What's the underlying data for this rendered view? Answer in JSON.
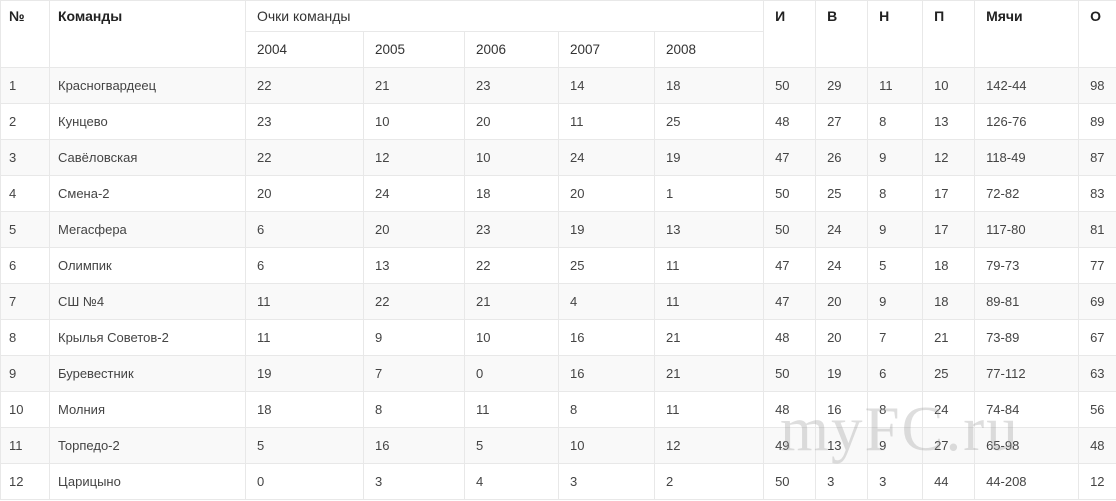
{
  "table": {
    "header": {
      "num": "№",
      "team": "Команды",
      "points_group": "Очки команды",
      "years": [
        "2004",
        "2005",
        "2006",
        "2007",
        "2008"
      ],
      "games": "И",
      "wins": "В",
      "draws": "Н",
      "losses": "П",
      "goals": "Мячи",
      "points": "О"
    },
    "rows": [
      {
        "num": "1",
        "team": "Красногвардеец",
        "years": [
          "22",
          "21",
          "23",
          "14",
          "18"
        ],
        "games": "50",
        "wins": "29",
        "draws": "11",
        "losses": "10",
        "goals": "142-44",
        "points": "98"
      },
      {
        "num": "2",
        "team": "Кунцево",
        "years": [
          "23",
          "10",
          "20",
          "11",
          "25"
        ],
        "games": "48",
        "wins": "27",
        "draws": "8",
        "losses": "13",
        "goals": "126-76",
        "points": "89"
      },
      {
        "num": "3",
        "team": "Савёловская",
        "years": [
          "22",
          "12",
          "10",
          "24",
          "19"
        ],
        "games": "47",
        "wins": "26",
        "draws": "9",
        "losses": "12",
        "goals": "118-49",
        "points": "87"
      },
      {
        "num": "4",
        "team": "Смена-2",
        "years": [
          "20",
          "24",
          "18",
          "20",
          "1"
        ],
        "games": "50",
        "wins": "25",
        "draws": "8",
        "losses": "17",
        "goals": "72-82",
        "points": "83"
      },
      {
        "num": "5",
        "team": "Мегасфера",
        "years": [
          "6",
          "20",
          "23",
          "19",
          "13"
        ],
        "games": "50",
        "wins": "24",
        "draws": "9",
        "losses": "17",
        "goals": "117-80",
        "points": "81"
      },
      {
        "num": "6",
        "team": "Олимпик",
        "years": [
          "6",
          "13",
          "22",
          "25",
          "11"
        ],
        "games": "47",
        "wins": "24",
        "draws": "5",
        "losses": "18",
        "goals": "79-73",
        "points": "77"
      },
      {
        "num": "7",
        "team": "СШ №4",
        "years": [
          "11",
          "22",
          "21",
          "4",
          "11"
        ],
        "games": "47",
        "wins": "20",
        "draws": "9",
        "losses": "18",
        "goals": "89-81",
        "points": "69"
      },
      {
        "num": "8",
        "team": "Крылья Советов-2",
        "years": [
          "11",
          "9",
          "10",
          "16",
          "21"
        ],
        "games": "48",
        "wins": "20",
        "draws": "7",
        "losses": "21",
        "goals": "73-89",
        "points": "67"
      },
      {
        "num": "9",
        "team": "Буревестник",
        "years": [
          "19",
          "7",
          "0",
          "16",
          "21"
        ],
        "games": "50",
        "wins": "19",
        "draws": "6",
        "losses": "25",
        "goals": "77-112",
        "points": "63"
      },
      {
        "num": "10",
        "team": "Молния",
        "years": [
          "18",
          "8",
          "11",
          "8",
          "11"
        ],
        "games": "48",
        "wins": "16",
        "draws": "8",
        "losses": "24",
        "goals": "74-84",
        "points": "56"
      },
      {
        "num": "11",
        "team": "Торпедо-2",
        "years": [
          "5",
          "16",
          "5",
          "10",
          "12"
        ],
        "games": "49",
        "wins": "13",
        "draws": "9",
        "losses": "27",
        "goals": "65-98",
        "points": "48"
      },
      {
        "num": "12",
        "team": "Царицыно",
        "years": [
          "0",
          "3",
          "4",
          "3",
          "2"
        ],
        "games": "50",
        "wins": "3",
        "draws": "3",
        "losses": "44",
        "goals": "44-208",
        "points": "12"
      }
    ]
  },
  "watermark": {
    "text": "myFC.ru"
  },
  "colors": {
    "border": "#e8e8e8",
    "row_stripe": "#f9f9f9",
    "header_text": "#222222",
    "cell_text": "#444444",
    "watermark_text": "#9a9a9a"
  }
}
